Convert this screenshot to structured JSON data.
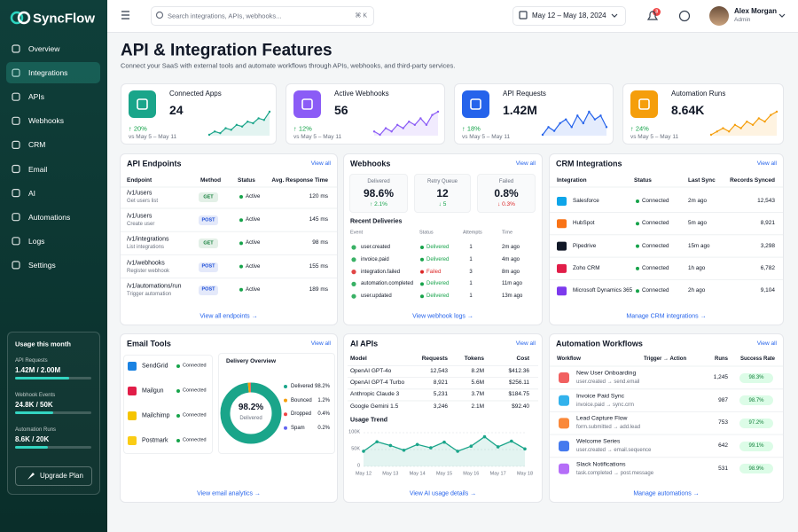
{
  "sidebar": {
    "brand": "SyncFlow",
    "nav": [
      "Overview",
      "Integrations",
      "APIs",
      "Webhooks",
      "CRM",
      "Email",
      "AI",
      "Automations",
      "Logs",
      "Settings"
    ],
    "active": 1,
    "usage": {
      "title": "Usage this month",
      "items": [
        {
          "label": "API Requests",
          "value": "1.42M / 2.00M",
          "progress": 71
        },
        {
          "label": "Webhook Events",
          "value": "24.8K / 50K",
          "progress": 50
        },
        {
          "label": "Automation Runs",
          "value": "8.6K / 20K",
          "progress": 43
        }
      ],
      "button": "Upgrade Plan"
    }
  },
  "topbar": {
    "search": "Search integrations, APIs, webhooks...",
    "shortcut": "⌘ K",
    "date_range": "May 12 – May 18, 2024",
    "notifications": "3",
    "user": {
      "name": "Alex Morgan",
      "role": "Admin"
    }
  },
  "header": {
    "title": "API & Integration Features",
    "subtitle": "Connect your SaaS with external tools and automate workflows through APIs, webhooks, and third-party services."
  },
  "kpis": [
    {
      "label": "Connected Apps",
      "value": "24",
      "change": "↑ 20%",
      "compare": "vs May 5 – May 11",
      "color": "#1aa58a",
      "trend": [
        2,
        3,
        2.5,
        4,
        3.5,
        5,
        4.5,
        6,
        5.5,
        7,
        6.5,
        9
      ]
    },
    {
      "label": "Active Webhooks",
      "value": "56",
      "change": "↑ 12%",
      "compare": "vs May 5 – May 11",
      "color": "#8b5cf6",
      "trend": [
        3,
        2,
        4,
        3,
        5,
        4,
        6,
        5,
        7,
        5,
        8,
        9
      ]
    },
    {
      "label": "API Requests",
      "value": "1.42M",
      "change": "↑ 18%",
      "compare": "vs May 5 – May 11",
      "color": "#2563eb",
      "trend": [
        4,
        6,
        5,
        7,
        8,
        6,
        9,
        7,
        10,
        8,
        9,
        6
      ]
    },
    {
      "label": "Automation Runs",
      "value": "8.64K",
      "change": "↑ 24%",
      "compare": "vs May 5 – May 11",
      "color": "#f59e0b",
      "trend": [
        2,
        3,
        4,
        3,
        5,
        4,
        6,
        5,
        7,
        6,
        8,
        9
      ]
    }
  ],
  "api_endpoints": {
    "title": "API Endpoints",
    "link": "View all",
    "columns": [
      "Endpoint",
      "Method",
      "Status",
      "Avg. Response Time"
    ],
    "rows": [
      {
        "endpoint": "/v1/users",
        "description": "Get users list",
        "method": "GET",
        "badge": "#15803d",
        "status": "Active",
        "time": "120 ms"
      },
      {
        "endpoint": "/v1/users",
        "description": "Create user",
        "method": "POST",
        "badge": "#1d4ed8",
        "status": "Active",
        "time": "145 ms"
      },
      {
        "endpoint": "/v1/integrations",
        "description": "List integrations",
        "method": "GET",
        "badge": "#15803d",
        "status": "Active",
        "time": "98 ms"
      },
      {
        "endpoint": "/v1/webhooks",
        "description": "Register webhook",
        "method": "POST",
        "badge": "#1d4ed8",
        "status": "Active",
        "time": "155 ms"
      },
      {
        "endpoint": "/v1/automations/run",
        "description": "Trigger automation",
        "method": "POST",
        "badge": "#1d4ed8",
        "status": "Active",
        "time": "189 ms"
      }
    ],
    "footer": "View all endpoints →"
  },
  "webhooks": {
    "title": "Webhooks",
    "link": "View all",
    "stats": [
      {
        "label": "Delivered",
        "value": "98.6%",
        "change": "↑ 2.1%",
        "color": "#16a34a"
      },
      {
        "label": "Retry Queue",
        "value": "12",
        "change": "↓ 5",
        "color": "#16a34a"
      },
      {
        "label": "Failed",
        "value": "0.8%",
        "change": "↓ 0.3%",
        "color": "#dc2626"
      }
    ],
    "deliveries": {
      "title": "Recent Deliveries",
      "columns": [
        "Event",
        "Status",
        "Attempts",
        "Time"
      ],
      "rows": [
        {
          "event": "user.created",
          "status": "Delivered",
          "attempts": "1",
          "time": "2m ago",
          "color": "#16a34a"
        },
        {
          "event": "invoice.paid",
          "status": "Delivered",
          "attempts": "1",
          "time": "4m ago",
          "color": "#16a34a"
        },
        {
          "event": "integration.failed",
          "status": "Failed",
          "attempts": "3",
          "time": "8m ago",
          "color": "#dc2626"
        },
        {
          "event": "automation.completed",
          "status": "Delivered",
          "attempts": "1",
          "time": "11m ago",
          "color": "#16a34a"
        },
        {
          "event": "user.updated",
          "status": "Delivered",
          "attempts": "1",
          "time": "13m ago",
          "color": "#16a34a"
        }
      ]
    },
    "footer": "View webhook logs →"
  },
  "crm": {
    "title": "CRM Integrations",
    "link": "View all",
    "columns": [
      "Integration",
      "Status",
      "Last Sync",
      "Records Synced"
    ],
    "rows": [
      {
        "name": "Salesforce",
        "status": "Connected",
        "last_sync": "2m ago",
        "records": "12,543",
        "color": "#0ea5e9"
      },
      {
        "name": "HubSpot",
        "status": "Connected",
        "last_sync": "5m ago",
        "records": "8,921",
        "color": "#f97316"
      },
      {
        "name": "Pipedrive",
        "status": "Connected",
        "last_sync": "15m ago",
        "records": "3,298",
        "color": "#111827"
      },
      {
        "name": "Zoho CRM",
        "status": "Connected",
        "last_sync": "1h ago",
        "records": "6,782",
        "color": "#e11d48"
      },
      {
        "name": "Microsoft Dynamics 365",
        "status": "Connected",
        "last_sync": "2h ago",
        "records": "9,104",
        "color": "#7c3aed"
      }
    ],
    "footer": "Manage CRM integrations →"
  },
  "email_tools": {
    "title": "Email Tools",
    "link": "View all",
    "tools": [
      {
        "name": "SendGrid",
        "status": "Connected",
        "color": "#1a82e2"
      },
      {
        "name": "Mailgun",
        "status": "Connected",
        "color": "#e11d48"
      },
      {
        "name": "Mailchimp",
        "status": "Connected",
        "color": "#f5c400"
      },
      {
        "name": "Postmark",
        "status": "Connected",
        "color": "#facc15"
      }
    ],
    "delivery": {
      "title": "Delivery Overview",
      "chart_data": {
        "type": "donut",
        "categories": [
          "Delivered",
          "Bounced",
          "Dropped",
          "Spam"
        ],
        "values": [
          98.2,
          1.2,
          0.4,
          0.2
        ],
        "value_labels": [
          "98.2%",
          "1.2%",
          "0.4%",
          "0.2%"
        ],
        "colors": [
          "#1aa58a",
          "#f59e0b",
          "#ef4444",
          "#6366f1"
        ]
      }
    },
    "footer": "View email analytics →"
  },
  "ai_apis": {
    "title": "AI APIs",
    "link": "View all",
    "columns": [
      "Model",
      "Requests",
      "Tokens",
      "Cost"
    ],
    "rows": [
      [
        "OpenAI GPT-4o",
        "12,543",
        "8.2M",
        "$412.36"
      ],
      [
        "OpenAI GPT-4 Turbo",
        "8,921",
        "5.6M",
        "$256.11"
      ],
      [
        "Anthropic Claude 3",
        "5,231",
        "3.7M",
        "$184.75"
      ],
      [
        "Google Gemini 1.5",
        "3,246",
        "2.1M",
        "$92.40"
      ]
    ],
    "usage_trend": {
      "type": "line",
      "title": "Usage Trend",
      "categories": [
        "May 12",
        null,
        "May 13",
        null,
        "May 14",
        null,
        "May 15",
        null,
        "May 16",
        null,
        "May 17",
        null,
        "May 18"
      ],
      "values": [
        45000,
        73000,
        62000,
        48000,
        65000,
        55000,
        72000,
        45000,
        60000,
        88000,
        58000,
        75000,
        52000
      ],
      "ylim": [
        0,
        100000
      ],
      "yticks": [
        0,
        {
          "value": 50000,
          "label": "50K"
        },
        {
          "value": 100000,
          "label": "100K"
        }
      ],
      "grid": true,
      "color": "#1aa58a"
    },
    "footer": "View AI usage details →"
  },
  "automations": {
    "title": "Automation Workflows",
    "link": "View all",
    "columns": [
      "Workflow",
      "Trigger → Action",
      "Runs",
      "Success Rate"
    ],
    "rows": [
      {
        "name": "New User Onboarding",
        "trigger": "user.created → send.email",
        "runs": "1,245",
        "rate": "98.3%",
        "color": "#ef4444"
      },
      {
        "name": "Invoice Paid Sync",
        "trigger": "invoice.paid → sync.crm",
        "runs": "987",
        "rate": "98.7%",
        "color": "#0ea5e9"
      },
      {
        "name": "Lead Capture Flow",
        "trigger": "form.submitted → add.lead",
        "runs": "753",
        "rate": "97.2%",
        "color": "#f97316"
      },
      {
        "name": "Welcome Series",
        "trigger": "user.created → email.sequence",
        "runs": "642",
        "rate": "99.1%",
        "color": "#2563eb"
      },
      {
        "name": "Slack Notifications",
        "trigger": "task.completed → post.message",
        "runs": "531",
        "rate": "98.9%",
        "color": "#a855f7"
      }
    ],
    "footer": "Manage automations →"
  }
}
